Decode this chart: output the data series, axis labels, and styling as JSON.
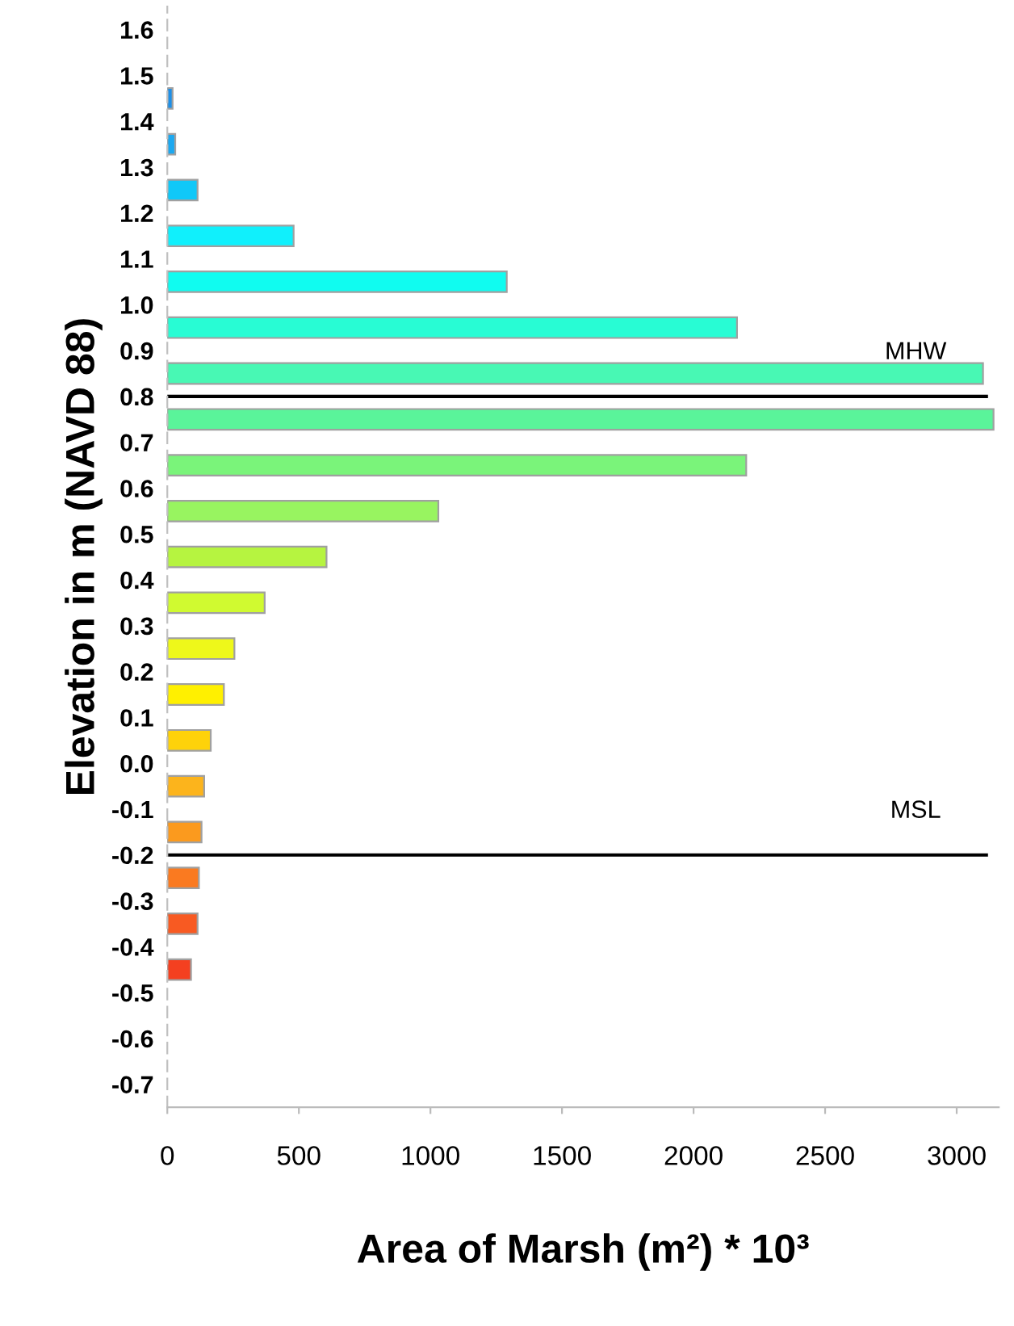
{
  "chart_data": {
    "type": "histogram",
    "orientation": "horizontal",
    "xlabel": "Area of Marsh (m²) * 10³",
    "ylabel": "Elevation in m (NAVD 88)",
    "bins": [
      -0.5,
      -0.4,
      -0.3,
      -0.2,
      -0.1,
      0.0,
      0.1,
      0.2,
      0.3,
      0.4,
      0.5,
      0.6,
      0.7,
      0.8,
      0.9,
      1.0,
      1.1,
      1.2,
      1.3,
      1.4,
      1.5
    ],
    "values": [
      90,
      115,
      120,
      130,
      140,
      165,
      215,
      255,
      370,
      605,
      1030,
      2200,
      3140,
      3100,
      2165,
      1290,
      480,
      115,
      30,
      20
    ],
    "colors": [
      "#f44020",
      "#f85a22",
      "#fa7a20",
      "#fb9a1e",
      "#fcb41c",
      "#fed20a",
      "#fff000",
      "#eef81a",
      "#d0fa30",
      "#b6f440",
      "#98f460",
      "#7af47a",
      "#5af49a",
      "#48f8b4",
      "#28fcd4",
      "#10fcf0",
      "#10f0fc",
      "#10c8f8",
      "#1ca8f0",
      "#1e90e8"
    ],
    "xlim": [
      0,
      3160
    ],
    "xticks": [
      0,
      500,
      1000,
      1500,
      2000,
      2500,
      3000
    ],
    "ylim": [
      -0.75,
      1.65
    ],
    "yticks": [
      {
        "value": -0.7,
        "label": "-0.7"
      },
      {
        "value": -0.6,
        "label": "-0.6"
      },
      {
        "value": -0.5,
        "label": "-0.5"
      },
      {
        "value": -0.4,
        "label": "-0.4"
      },
      {
        "value": -0.3,
        "label": "-0.3"
      },
      {
        "value": -0.2,
        "label": "-0.2"
      },
      {
        "value": -0.1,
        "label": "-0.1"
      },
      {
        "value": 0.0,
        "label": "0.0"
      },
      {
        "value": 0.1,
        "label": "0.1"
      },
      {
        "value": 0.2,
        "label": "0.2"
      },
      {
        "value": 0.3,
        "label": "0.3"
      },
      {
        "value": 0.4,
        "label": "0.4"
      },
      {
        "value": 0.5,
        "label": "0.5"
      },
      {
        "value": 0.6,
        "label": "0.6"
      },
      {
        "value": 0.7,
        "label": "0.7"
      },
      {
        "value": 0.8,
        "label": "0.8"
      },
      {
        "value": 0.9,
        "label": "0.9"
      },
      {
        "value": 1.0,
        "label": "1.0"
      },
      {
        "value": 1.1,
        "label": "1.1"
      },
      {
        "value": 1.2,
        "label": "1.2"
      },
      {
        "value": 1.3,
        "label": "1.3"
      },
      {
        "value": 1.4,
        "label": "1.4"
      },
      {
        "value": 1.5,
        "label": "1.5"
      },
      {
        "value": 1.6,
        "label": "1.6"
      }
    ],
    "ref_lines": [
      {
        "axis": "y",
        "value": 0.8,
        "label": "MHW",
        "color": "#000000"
      },
      {
        "axis": "y",
        "value": -0.2,
        "label": "MSL",
        "color": "#000000"
      }
    ],
    "grid": false,
    "legend": false
  }
}
